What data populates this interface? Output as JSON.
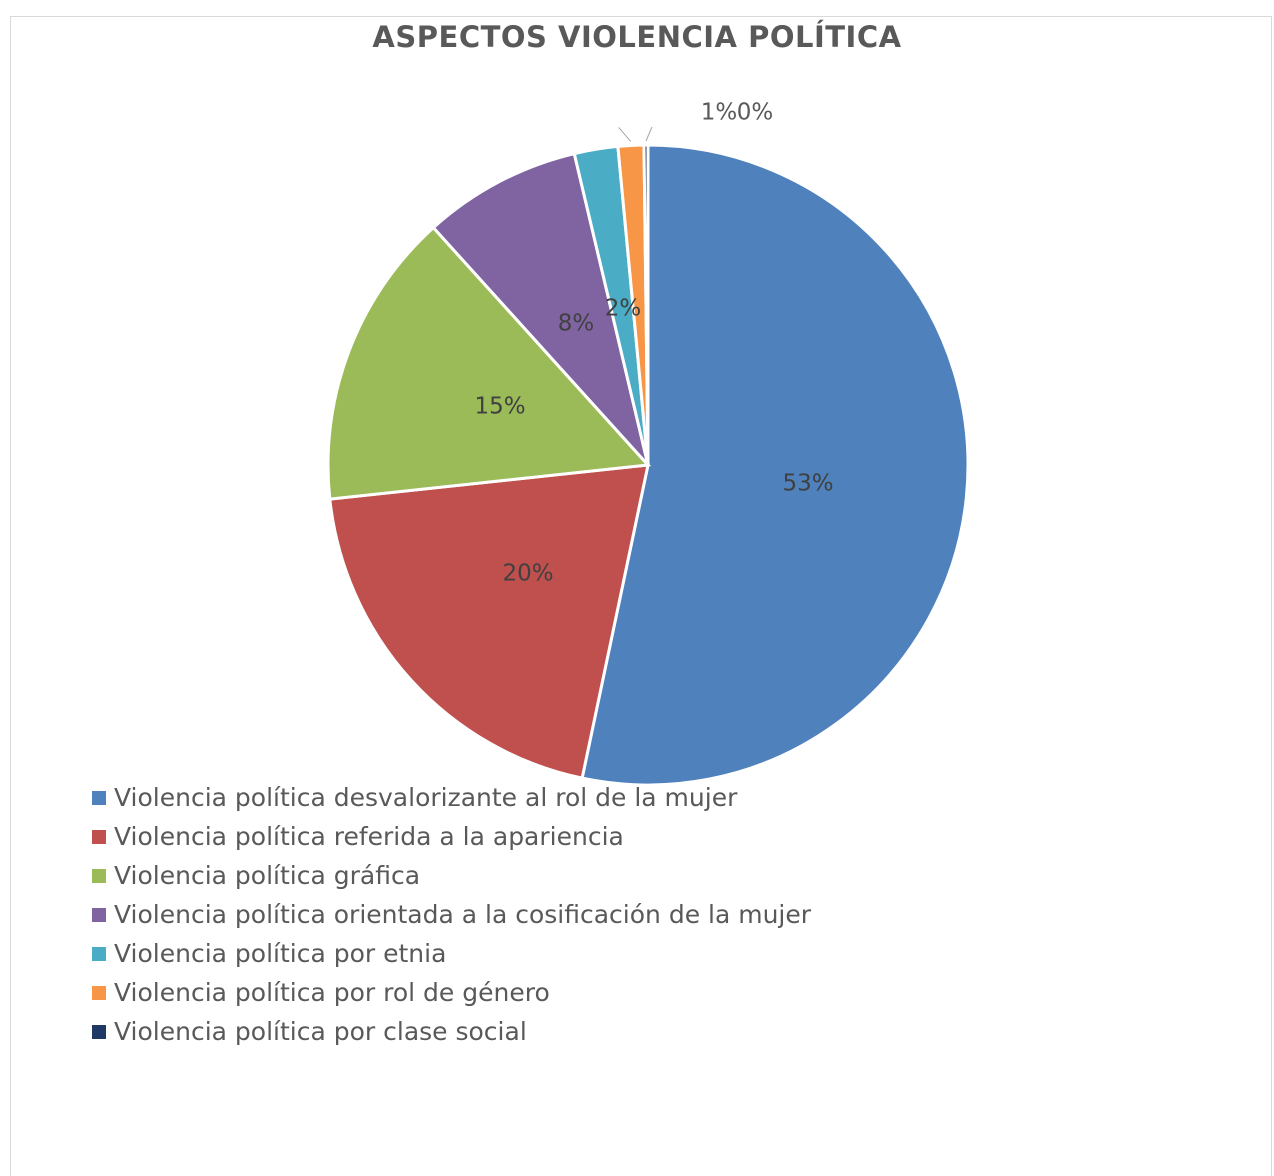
{
  "chart_data": {
    "type": "pie",
    "title": "ASPECTOS VIOLENCIA POLÍTICA",
    "slices": [
      {
        "label": "Violencia política desvalorizante al rol de la mujer",
        "value": 53.3,
        "display": "53%",
        "color": "#4f81bd"
      },
      {
        "label": "Violencia política referida a la apariencia",
        "value": 20.0,
        "display": "20%",
        "color": "#c0504d"
      },
      {
        "label": "Violencia política gráfica",
        "value": 15.0,
        "display": "15%",
        "color": "#9bbb59"
      },
      {
        "label": "Violencia política orientada a la cosificación de la mujer",
        "value": 8.0,
        "display": "8%",
        "color": "#8064a2"
      },
      {
        "label": "Violencia política por etnia",
        "value": 2.2,
        "display": "2%",
        "color": "#4bacc6"
      },
      {
        "label": "Violencia política por rol de género",
        "value": 1.3,
        "display": "1%",
        "color": "#f79646"
      },
      {
        "label": "Violencia política por clase social",
        "value": 0.2,
        "display": "0%",
        "color": "#1f3864"
      }
    ],
    "legend_position": "bottom-left"
  }
}
